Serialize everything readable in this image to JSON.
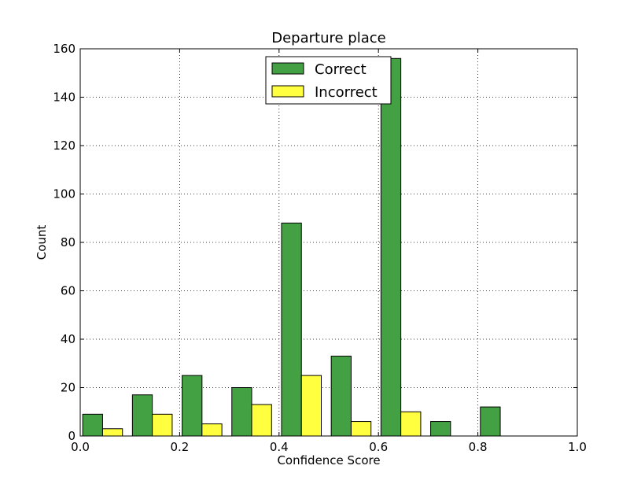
{
  "chart_data": {
    "type": "bar",
    "title": "Departure place",
    "xlabel": "Confidence Score",
    "ylabel": "Count",
    "xlim": [
      0.0,
      1.0
    ],
    "ylim": [
      0,
      160
    ],
    "xticks": [
      "0.0",
      "0.2",
      "0.4",
      "0.6",
      "0.8",
      "1.0"
    ],
    "yticks": [
      "0",
      "20",
      "40",
      "60",
      "80",
      "100",
      "120",
      "140",
      "160"
    ],
    "bins": [
      [
        0.0,
        0.1
      ],
      [
        0.1,
        0.2
      ],
      [
        0.2,
        0.3
      ],
      [
        0.3,
        0.4
      ],
      [
        0.4,
        0.5
      ],
      [
        0.5,
        0.6
      ],
      [
        0.6,
        0.7
      ],
      [
        0.7,
        0.8
      ],
      [
        0.8,
        0.9
      ],
      [
        0.9,
        1.0
      ]
    ],
    "grid": true,
    "legend_position": "top-center",
    "series": [
      {
        "name": "Correct",
        "color": "#43a143",
        "values": [
          9,
          17,
          25,
          20,
          88,
          33,
          156,
          6,
          12,
          0
        ]
      },
      {
        "name": "Incorrect",
        "color": "#ffff40",
        "values": [
          3,
          9,
          5,
          13,
          25,
          6,
          10,
          0,
          0,
          0
        ]
      }
    ]
  }
}
